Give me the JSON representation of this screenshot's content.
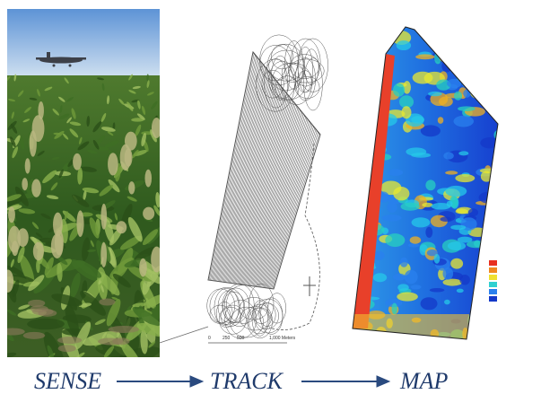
{
  "labels": {
    "sense": "SENSE",
    "track": "TRACK",
    "map": "MAP"
  },
  "scale_bar": [
    "0",
    "250",
    "500",
    "1,000 Meters"
  ]
}
